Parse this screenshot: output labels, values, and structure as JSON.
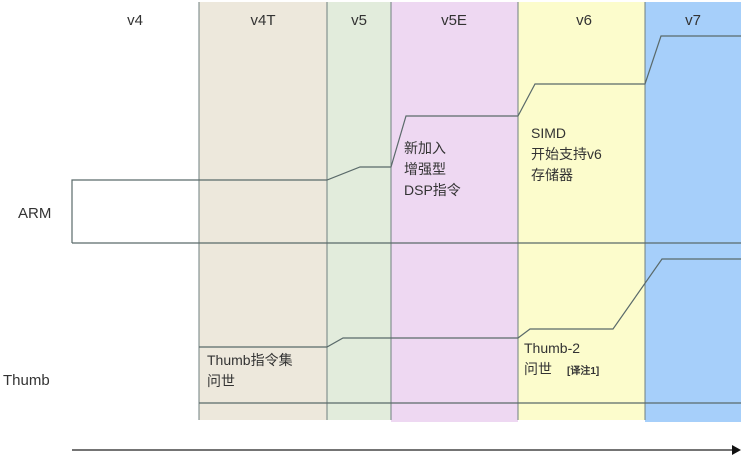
{
  "columns": [
    {
      "label": "v4",
      "color": "#ffffff"
    },
    {
      "label": "v4T",
      "color": "#ede8dc"
    },
    {
      "label": "v5",
      "color": "#e2ecdc"
    },
    {
      "label": "v5E",
      "color": "#eed8f2"
    },
    {
      "label": "v6",
      "color": "#fcfccc"
    },
    {
      "label": "v7",
      "color": "#a6cffa"
    }
  ],
  "rows": {
    "arm": "ARM",
    "thumb": "Thumb"
  },
  "notes": {
    "v5e": [
      "新加入",
      "增强型",
      "DSP指令"
    ],
    "v6": [
      "SIMD",
      "开始支持v6",
      "存储器"
    ],
    "thumb": [
      "Thumb指令集",
      "问世"
    ],
    "thumb2": [
      "Thumb-2",
      "问世"
    ],
    "thumb2_footnote": "[译注1]"
  },
  "line_color": "#5a6a6a"
}
